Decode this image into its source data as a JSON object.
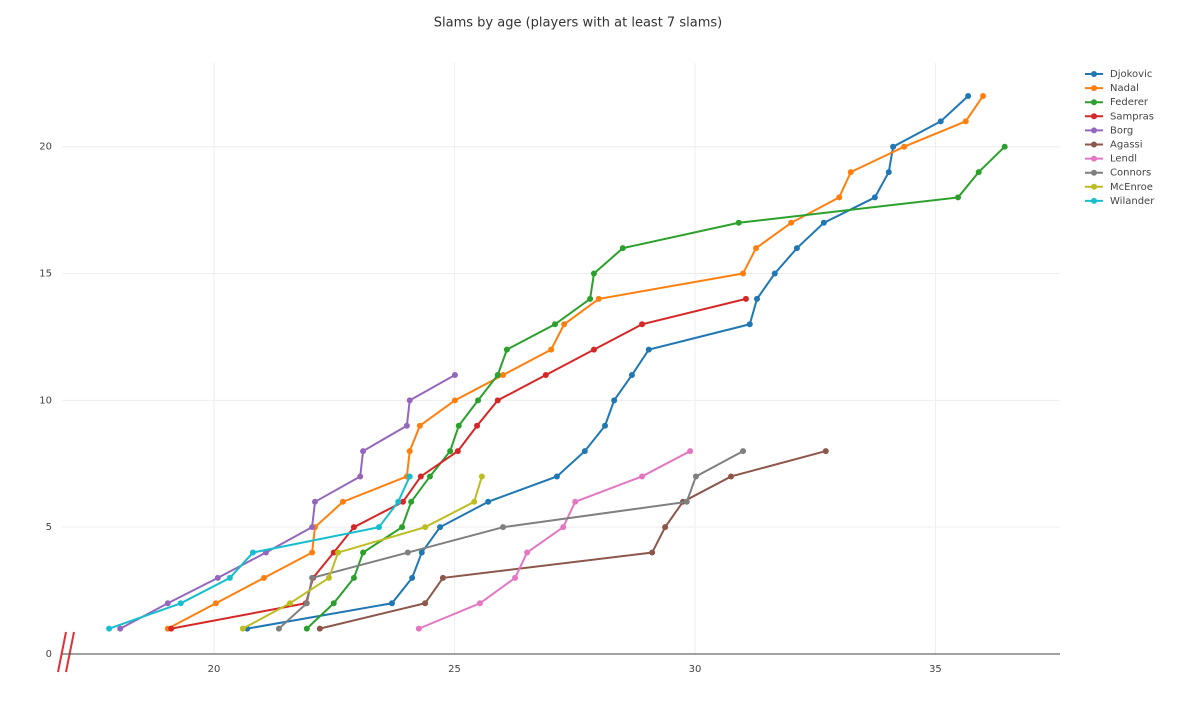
{
  "chart_data": {
    "type": "line",
    "title": "Slams by age (players with at least 7 slams)",
    "xlim": [
      16.84,
      37.59
    ],
    "ylim": [
      0,
      23.3
    ],
    "xticks": [
      20,
      25,
      30,
      35
    ],
    "yticks": [
      0,
      5,
      10,
      15,
      20
    ],
    "grid": true,
    "legend": "top-right",
    "series": [
      {
        "name": "Djokovic",
        "color": "#1f77b4",
        "x": [
          20.69,
          23.7,
          24.12,
          24.32,
          24.7,
          25.7,
          27.13,
          27.71,
          28.13,
          28.32,
          28.69,
          29.04,
          31.14,
          31.29,
          31.66,
          32.12,
          32.68,
          33.74,
          34.03,
          34.12,
          35.11,
          35.68
        ],
        "values": [
          1,
          2,
          3,
          4,
          5,
          6,
          7,
          8,
          9,
          10,
          11,
          12,
          13,
          14,
          15,
          16,
          17,
          18,
          19,
          20,
          21,
          22
        ]
      },
      {
        "name": "Nadal",
        "color": "#ff7f0e",
        "x": [
          19.04,
          20.04,
          21.04,
          22.04,
          22.1,
          22.68,
          24.01,
          24.07,
          24.28,
          25.01,
          26.01,
          27.01,
          27.28,
          28.0,
          31.0,
          31.27,
          32.0,
          33.0,
          33.24,
          34.35,
          35.63,
          35.99
        ],
        "values": [
          1,
          2,
          3,
          4,
          5,
          6,
          7,
          8,
          9,
          10,
          11,
          12,
          13,
          14,
          15,
          16,
          17,
          18,
          19,
          20,
          21,
          22
        ]
      },
      {
        "name": "Federer",
        "color": "#2ca02c",
        "x": [
          21.93,
          22.49,
          22.91,
          23.1,
          23.91,
          24.1,
          24.49,
          24.91,
          25.09,
          25.49,
          25.9,
          26.09,
          27.09,
          27.82,
          27.9,
          28.5,
          30.91,
          35.47,
          35.9,
          36.44
        ],
        "values": [
          1,
          2,
          3,
          4,
          5,
          6,
          7,
          8,
          9,
          10,
          11,
          12,
          13,
          14,
          15,
          16,
          17,
          18,
          19,
          20
        ]
      },
      {
        "name": "Sampras",
        "color": "#d62728",
        "x": [
          19.11,
          21.91,
          22.06,
          22.49,
          22.91,
          23.93,
          24.3,
          25.07,
          25.47,
          25.9,
          26.9,
          27.9,
          28.9,
          31.06
        ],
        "values": [
          1,
          2,
          3,
          4,
          5,
          6,
          7,
          8,
          9,
          10,
          11,
          12,
          13,
          14
        ]
      },
      {
        "name": "Borg",
        "color": "#9467bd",
        "x": [
          18.05,
          19.04,
          20.08,
          21.08,
          22.04,
          22.1,
          23.04,
          23.1,
          24.01,
          24.07,
          25.01
        ],
        "values": [
          1,
          2,
          3,
          4,
          5,
          6,
          7,
          8,
          9,
          10,
          11
        ]
      },
      {
        "name": "Agassi",
        "color": "#8c564b",
        "x": [
          22.2,
          24.39,
          24.76,
          29.11,
          29.38,
          29.75,
          30.75,
          32.72
        ],
        "values": [
          1,
          2,
          3,
          4,
          5,
          6,
          7,
          8
        ]
      },
      {
        "name": "Lendl",
        "color": "#e377c2",
        "x": [
          24.26,
          25.53,
          26.26,
          26.51,
          27.26,
          27.51,
          28.9,
          29.9
        ],
        "values": [
          1,
          2,
          3,
          4,
          5,
          6,
          7,
          8
        ]
      },
      {
        "name": "Connors",
        "color": "#7f7f7f",
        "x": [
          21.35,
          21.93,
          22.04,
          24.03,
          26.01,
          29.83,
          30.02,
          31.0
        ],
        "values": [
          1,
          2,
          3,
          4,
          5,
          6,
          7,
          8
        ]
      },
      {
        "name": "McEnroe",
        "color": "#bcbd22",
        "x": [
          20.6,
          21.58,
          22.39,
          22.58,
          24.39,
          25.41,
          25.57
        ],
        "values": [
          1,
          2,
          3,
          4,
          5,
          6,
          7
        ]
      },
      {
        "name": "Wilander",
        "color": "#17becf",
        "x": [
          17.82,
          19.31,
          20.33,
          20.81,
          23.43,
          23.83,
          24.07
        ],
        "values": [
          1,
          2,
          3,
          4,
          5,
          6,
          7
        ]
      }
    ]
  }
}
